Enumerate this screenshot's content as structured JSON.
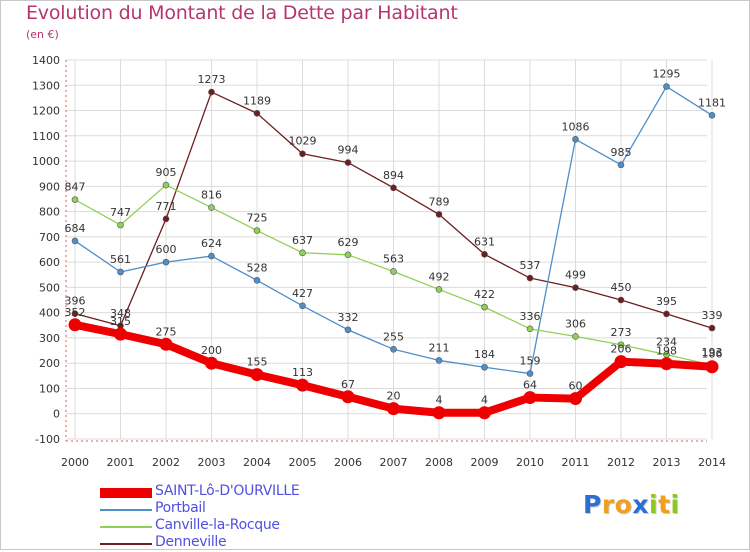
{
  "title": "Evolution du Montant de la Dette par Habitant",
  "unit": "(en €)",
  "logo": {
    "letters": [
      "P",
      "r",
      "o",
      "x",
      "i",
      "t",
      "i"
    ],
    "colors": [
      "#2a6fd6",
      "#f0a020",
      "#f0a020",
      "#2a6fd6",
      "#8cc820",
      "#f0a020",
      "#8cc820"
    ]
  },
  "chart_data": {
    "type": "line",
    "categories": [
      "2000",
      "2001",
      "2002",
      "2003",
      "2004",
      "2005",
      "2006",
      "2007",
      "2008",
      "2009",
      "2010",
      "2011",
      "2012",
      "2013",
      "2014"
    ],
    "ylim": [
      -100,
      1400
    ],
    "yticks": [
      -100,
      0,
      100,
      200,
      300,
      400,
      500,
      600,
      700,
      800,
      900,
      1000,
      1100,
      1200,
      1300,
      1400
    ],
    "grid": true,
    "legend_position": "bottom-left",
    "series": [
      {
        "name": "SAINT-Lô-D'OURVILLE",
        "color": "#ee0000",
        "values": [
          352,
          315,
          275,
          200,
          155,
          113,
          67,
          20,
          4,
          4,
          64,
          60,
          206,
          198,
          186
        ]
      },
      {
        "name": "Portbail",
        "color": "#4d8fcb",
        "values": [
          684,
          561,
          600,
          624,
          528,
          427,
          332,
          255,
          211,
          184,
          159,
          1086,
          985,
          1295,
          1181
        ]
      },
      {
        "name": "Canville-la-Rocque",
        "color": "#8fd155",
        "values": [
          847,
          747,
          905,
          816,
          725,
          637,
          629,
          563,
          492,
          422,
          336,
          306,
          273,
          234,
          193
        ]
      },
      {
        "name": "Denneville",
        "color": "#6e1e1e",
        "values": [
          396,
          348,
          771,
          1273,
          1189,
          1029,
          994,
          894,
          789,
          631,
          537,
          499,
          450,
          395,
          339
        ]
      }
    ]
  }
}
